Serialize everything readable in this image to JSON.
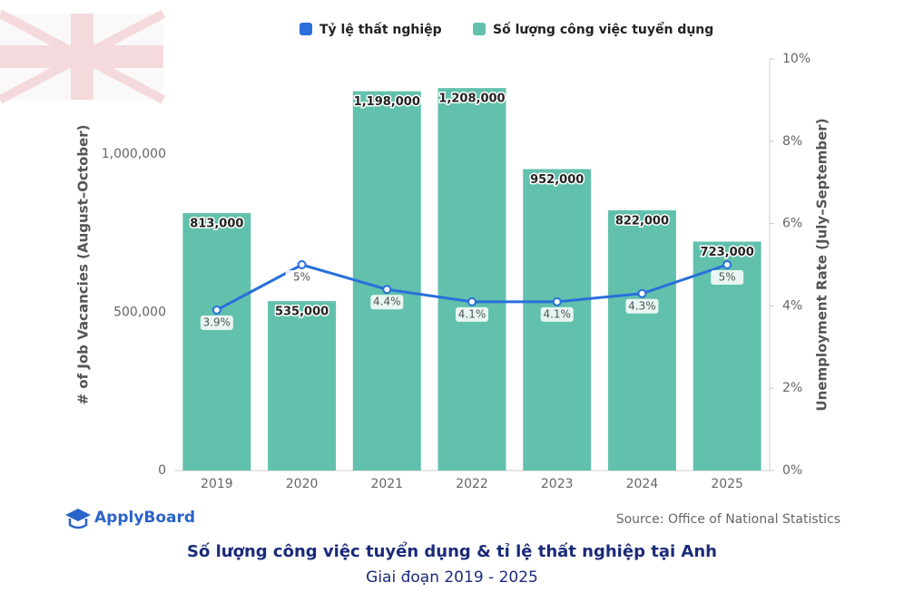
{
  "chart_data": {
    "type": "combo",
    "title": "Số lượng công việc tuyển dụng & tỉ lệ thất nghiệp tại Anh",
    "subtitle": "Giai đoạn 2019 - 2025",
    "source": "Source: Office of National Statistics",
    "logo": "ApplyBoard",
    "ylabel": "# of Job Vacancies (August–October)",
    "y2label": "Unemployment Rate (July–September)",
    "categories": [
      "2019",
      "2020",
      "2021",
      "2022",
      "2023",
      "2024",
      "2025"
    ],
    "series": [
      {
        "name": "Tỷ lệ thất nghiệp",
        "type": "line",
        "axis": "y2",
        "color": "#2a6fdb",
        "values": [
          3.9,
          5,
          4.4,
          4.1,
          4.1,
          4.3,
          5
        ],
        "value_labels": [
          "3.9%",
          "5%",
          "4.4%",
          "4.1%",
          "4.1%",
          "4.3%",
          "5%"
        ]
      },
      {
        "name": "Số lượng công việc tuyển dụng",
        "type": "bar",
        "color": "#62c1ac",
        "values": [
          813000,
          535000,
          1198000,
          1208000,
          952000,
          822000,
          723000
        ],
        "value_labels": [
          "813,000",
          "535,000",
          "1,198,000",
          "1,208,000",
          "952,000",
          "822,000",
          "723,000"
        ]
      }
    ],
    "ylim": [
      0,
      1300000
    ],
    "yticks": [
      0,
      {
        "value": 500000,
        "label": "500,000"
      },
      {
        "value": 1000000,
        "label": "1,000,000"
      }
    ],
    "y2lim": [
      0,
      10
    ],
    "y2ticks": [
      {
        "value": 0,
        "label": "0%"
      },
      {
        "value": 2,
        "label": "2%"
      },
      {
        "value": 4,
        "label": "4%"
      },
      {
        "value": 6,
        "label": "6%"
      },
      {
        "value": 8,
        "label": "8%"
      },
      {
        "value": 10,
        "label": "10%"
      }
    ],
    "legend": "top"
  }
}
